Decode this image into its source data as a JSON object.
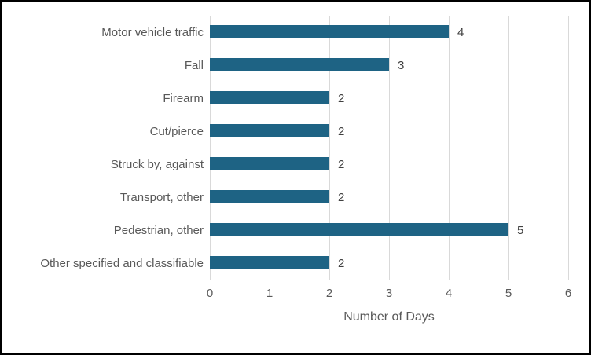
{
  "chart_data": {
    "type": "bar",
    "orientation": "horizontal",
    "title": "",
    "categories": [
      "Motor vehicle traffic",
      "Fall",
      "Firearm",
      "Cut/pierce",
      "Struck by, against",
      "Transport, other",
      "Pedestrian, other",
      "Other specified and classifiable"
    ],
    "values": [
      4,
      3,
      2,
      2,
      2,
      2,
      5,
      2
    ],
    "data_labels": [
      "4",
      "3",
      "2",
      "2",
      "2",
      "2",
      "5",
      "2"
    ],
    "xlabel": "Number of Days",
    "ylabel": "",
    "xlim": [
      0,
      6
    ],
    "xticks": [
      0,
      1,
      2,
      3,
      4,
      5,
      6
    ],
    "grid": "vertical-only",
    "legend": "none",
    "colors": {
      "bar": "#1e6384",
      "gridline": "#d9d9d9",
      "tick_text": "#595959",
      "category_text": "#595959",
      "data_label_text": "#404040",
      "frame_border": "#000000",
      "background": "#ffffff"
    }
  }
}
